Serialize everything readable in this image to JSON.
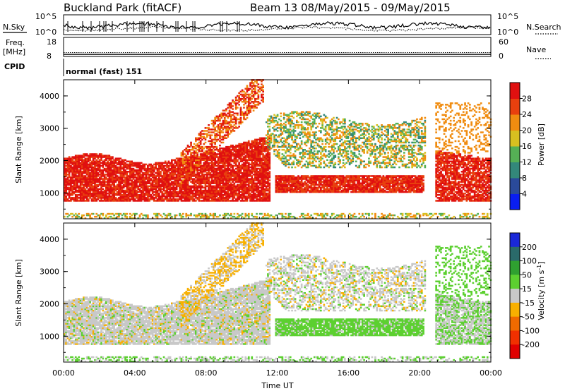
{
  "header": {
    "site_title": "Buckland Park (fitACF)",
    "beam_title": "Beam 13 08/May/2015 - 09/May/2015"
  },
  "top_panels": {
    "nsky_label": "N.Sky",
    "nsearch_label": "N.Search",
    "nsky_ticks": [
      "10^5",
      "10^0"
    ],
    "nsky_right_ticks": [
      "10^5",
      "10^0"
    ],
    "freq_label_line1": "Freq.",
    "freq_label_line2": "[MHz]",
    "freq_ticks": [
      "18",
      "8"
    ],
    "nave_label": "Nave",
    "nave_ticks": [
      "60",
      "0"
    ],
    "cpid_label": "CPID",
    "cpid_value": "normal (fast) 151"
  },
  "chart_data": [
    {
      "type": "heatmap",
      "name": "power",
      "ylabel": "Slant Range [km]",
      "ylim": [
        200,
        4500
      ],
      "y_ticks": [
        1000,
        2000,
        3000,
        4000
      ],
      "xlim": [
        0,
        24
      ],
      "colorbar": {
        "label": "Power [dB]",
        "ticks": [
          4,
          8,
          12,
          16,
          20,
          24,
          28
        ],
        "colors": [
          "#0a1ef0",
          "#2a4a9a",
          "#33887a",
          "#55b055",
          "#d8c020",
          "#f08c10",
          "#e8400e",
          "#e01010"
        ],
        "range": [
          0,
          32
        ]
      },
      "regions": [
        {
          "t": [
            0,
            11.5
          ],
          "r": [
            700,
            2000
          ],
          "level": "28+"
        },
        {
          "t": [
            6.5,
            11
          ],
          "r": [
            1500,
            4400
          ],
          "level": "20-28"
        },
        {
          "t": [
            11.5,
            20
          ],
          "r": [
            1800,
            3500
          ],
          "level": "8-24"
        },
        {
          "t": [
            12,
            20
          ],
          "r": [
            1000,
            1500
          ],
          "level": "20-28"
        },
        {
          "t": [
            21,
            24
          ],
          "r": [
            700,
            2200
          ],
          "level": "28+"
        }
      ]
    },
    {
      "type": "heatmap",
      "name": "velocity",
      "ylabel": "Slant Range [km]",
      "xlabel": "Time UT",
      "ylim": [
        200,
        4500
      ],
      "y_ticks": [
        1000,
        2000,
        3000,
        4000
      ],
      "xlim": [
        0,
        24
      ],
      "x_ticks": [
        "00:00",
        "04:00",
        "08:00",
        "12:00",
        "16:00",
        "20:00",
        "00:00"
      ],
      "colorbar": {
        "label_main": "Velocity [m s",
        "label_sup": "-1",
        "label_end": "]",
        "ticks": [
          "200",
          "100",
          "50",
          "15",
          "-15",
          "-50",
          "-100",
          "-200"
        ],
        "colors": [
          "#1a28d8",
          "#2a6a6a",
          "#2fa030",
          "#5cd030",
          "#c8c8c8",
          "#f8b000",
          "#f06a00",
          "#f03000",
          "#e00000"
        ]
      },
      "regions": [
        {
          "t": [
            0,
            11.5
          ],
          "r": [
            700,
            2000
          ],
          "level": "-15..15 (grey)"
        },
        {
          "t": [
            6.5,
            11
          ],
          "r": [
            1500,
            4400
          ],
          "level": "-50..-15 (orange)"
        },
        {
          "t": [
            11.5,
            20
          ],
          "r": [
            1800,
            3500
          ],
          "level": "-15..15 (grey)"
        },
        {
          "t": [
            12,
            20
          ],
          "r": [
            1000,
            1500
          ],
          "level": "15..50 (green)"
        },
        {
          "t": [
            21,
            24
          ],
          "r": [
            700,
            2200
          ],
          "level": "-15..50"
        }
      ]
    }
  ]
}
